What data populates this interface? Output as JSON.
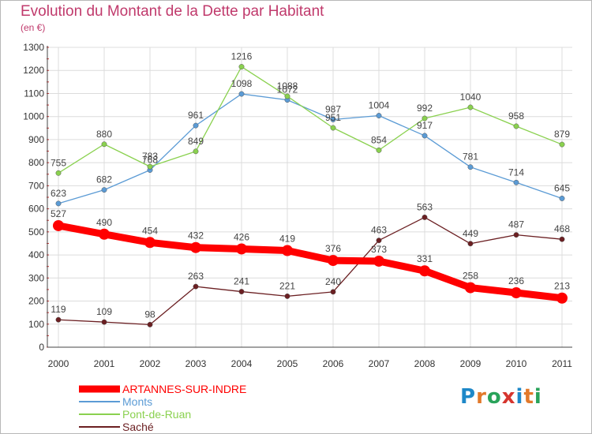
{
  "page": {
    "title": "Evolution du Montant de la Dette par Habitant",
    "unit": "(en €)",
    "logo": {
      "letters": [
        "P",
        "r",
        "o",
        "x",
        "i",
        "t",
        "i"
      ],
      "colors": [
        "#1e88c8",
        "#e2792a",
        "#29a35a",
        "#d6352e",
        "#1e88c8",
        "#e2792a",
        "#29a35a"
      ]
    }
  },
  "chart_data": {
    "type": "line",
    "title": "Evolution du Montant de la Dette par Habitant",
    "ylabel": "(en €)",
    "xlabel": "",
    "x": [
      "2000",
      "2001",
      "2002",
      "2003",
      "2004",
      "2005",
      "2006",
      "2007",
      "2008",
      "2009",
      "2010",
      "2011"
    ],
    "ylim": [
      0,
      1300
    ],
    "yticks": [
      "0",
      "100",
      "200",
      "300",
      "400",
      "500",
      "600",
      "700",
      "800",
      "900",
      "1000",
      "1100",
      "1200",
      "1300"
    ],
    "grid": true,
    "legend": "bottom-left",
    "series": [
      {
        "name": "ARTANNES-SUR-INDRE",
        "color": "#ff0000",
        "values": [
          527,
          490,
          454,
          432,
          426,
          419,
          376,
          373,
          331,
          258,
          236,
          213
        ],
        "labels": [
          "527",
          "490",
          "454",
          "432",
          "426",
          "419",
          "376",
          "373",
          "331",
          "258",
          "236",
          "213"
        ]
      },
      {
        "name": "Monts",
        "color": "#5b9bd5",
        "values": [
          623,
          682,
          768,
          961,
          1098,
          1072,
          987,
          1004,
          917,
          781,
          714,
          645
        ],
        "labels": [
          "623",
          "682",
          "768",
          "961",
          "1098",
          "1072",
          "987",
          "1004",
          "917",
          "781",
          "714",
          "645"
        ]
      },
      {
        "name": "Pont-de-Ruan",
        "color": "#8ad14f",
        "values": [
          755,
          880,
          783,
          849,
          1216,
          1088,
          951,
          854,
          992,
          1040,
          958,
          879
        ],
        "labels": [
          "755",
          "880",
          "783",
          "849",
          "1216",
          "1088",
          "951",
          "854",
          "992",
          "1040",
          "958",
          "879"
        ]
      },
      {
        "name": "Saché",
        "color": "#6b1f22",
        "values": [
          119,
          109,
          98,
          263,
          241,
          221,
          240,
          463,
          563,
          449,
          487,
          468
        ],
        "labels": [
          "119",
          "109",
          "98",
          "263",
          "241",
          "221",
          "240",
          "463",
          "563",
          "449",
          "487",
          "468"
        ]
      }
    ]
  }
}
